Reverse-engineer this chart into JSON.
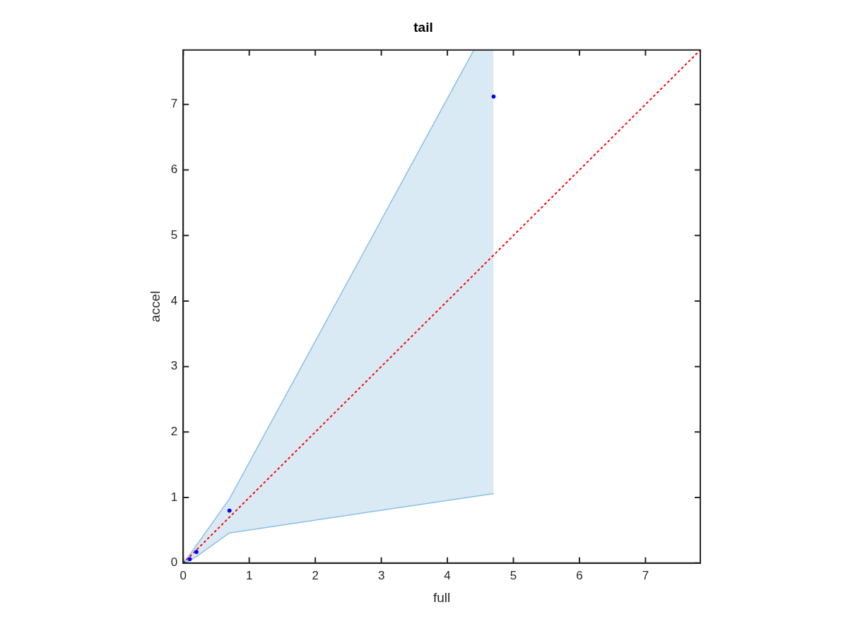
{
  "chart_data": {
    "type": "scatter",
    "title": "tail",
    "xlabel": "full",
    "ylabel": "accel",
    "xlim": [
      0,
      7.83
    ],
    "ylim": [
      0,
      7.83
    ],
    "xticks": [
      0,
      1,
      2,
      3,
      4,
      5,
      6,
      7
    ],
    "yticks": [
      0,
      1,
      2,
      3,
      4,
      5,
      6,
      7
    ],
    "grid": false,
    "legend": false,
    "series": [
      {
        "type": "area",
        "color": "#8cbfe0",
        "x": [
          0,
          0.1,
          0.2,
          0.7,
          4.4,
          4.7
        ],
        "values": [
          null,
          null,
          null,
          null,
          null,
          null
        ],
        "lower": [
          0,
          0.04,
          0.1,
          0.46,
          1.015,
          1.06
        ],
        "upper": [
          0,
          0.13,
          0.27,
          0.98,
          7.83,
          7.83
        ]
      },
      {
        "type": "line",
        "color": "#8cbfe0",
        "marker": "none",
        "x": [
          0,
          0.1,
          0.2,
          0.7,
          4.4
        ],
        "values": [
          0,
          0.13,
          0.27,
          0.98,
          7.83
        ]
      },
      {
        "type": "line",
        "color": "#8cbfe0",
        "marker": "none",
        "x": [
          0,
          0.1,
          0.2,
          0.7,
          4.7
        ],
        "values": [
          0,
          0.04,
          0.1,
          0.46,
          1.06
        ]
      },
      {
        "type": "scatter",
        "color": "#0000ff",
        "marker": "circle",
        "x": [
          0,
          0.1,
          0.2,
          0.7,
          4.7
        ],
        "values": [
          0,
          0.06,
          0.17,
          0.8,
          7.12
        ]
      },
      {
        "type": "line",
        "color": "#ff0000",
        "line_style": "dotted",
        "marker": "none",
        "x": [
          0,
          7.83
        ],
        "values": [
          0,
          7.83
        ]
      }
    ]
  }
}
